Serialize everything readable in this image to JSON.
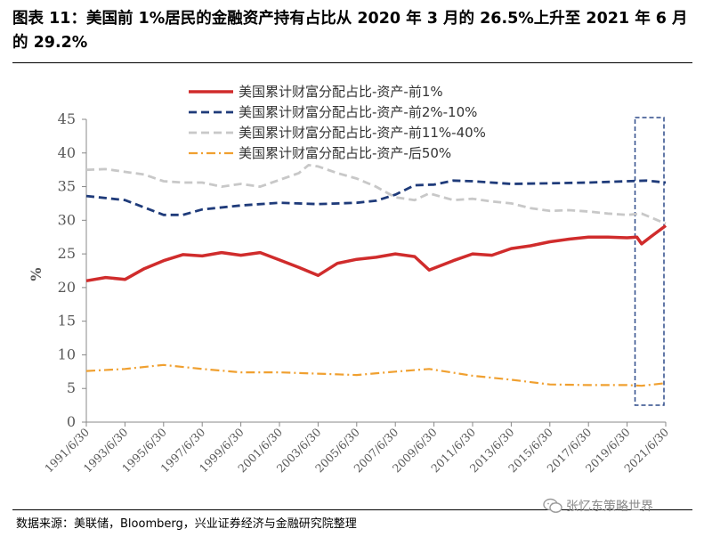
{
  "header": {
    "title": "图表 11：美国前 1%居民的金融资产持有占比从 2020 年 3 月的 26.5%上升至 2021 年 6 月的 29.2%"
  },
  "footer": {
    "source": "数据来源：美联储，Bloomberg，兴业证券经济与金融研究院整理",
    "watermark": "张忆东策略世界"
  },
  "chart_data": {
    "type": "line",
    "ylabel": "%",
    "xlabel": "",
    "ylim": [
      0,
      45
    ],
    "yticks": [
      0,
      5,
      10,
      15,
      20,
      25,
      30,
      35,
      40,
      45
    ],
    "x_tick_labels": [
      "1991/6/30",
      "1993/6/30",
      "1995/6/30",
      "1997/6/30",
      "1999/6/30",
      "2001/6/30",
      "2003/6/30",
      "2005/6/30",
      "2007/6/30",
      "2009/6/30",
      "2011/6/30",
      "2013/6/30",
      "2015/6/30",
      "2017/6/30",
      "2019/6/30",
      "2021/6/30"
    ],
    "xlim": [
      "1991/6/30",
      "2021/6/30"
    ],
    "grid": false,
    "legend_position": "top-center",
    "highlight": {
      "from": "2019/12/31",
      "to": "2021/6/30",
      "style": "dashed box"
    },
    "series": [
      {
        "name": "美国累计财富分配占比-资产-前1%",
        "color": "#d02c2c",
        "style": "solid",
        "points": [
          [
            "1991/6/30",
            21.0
          ],
          [
            "1992/6/30",
            21.5
          ],
          [
            "1993/6/30",
            21.2
          ],
          [
            "1994/6/30",
            22.8
          ],
          [
            "1995/6/30",
            24.0
          ],
          [
            "1996/6/30",
            24.9
          ],
          [
            "1997/6/30",
            24.7
          ],
          [
            "1998/6/30",
            25.2
          ],
          [
            "1999/6/30",
            24.8
          ],
          [
            "2000/6/30",
            25.2
          ],
          [
            "2001/6/30",
            24.1
          ],
          [
            "2002/6/30",
            23.0
          ],
          [
            "2003/6/30",
            21.8
          ],
          [
            "2004/6/30",
            23.6
          ],
          [
            "2005/6/30",
            24.2
          ],
          [
            "2006/6/30",
            24.5
          ],
          [
            "2007/6/30",
            25.0
          ],
          [
            "2008/6/30",
            24.6
          ],
          [
            "2009/3/31",
            22.6
          ],
          [
            "2010/6/30",
            24.0
          ],
          [
            "2011/6/30",
            25.0
          ],
          [
            "2012/6/30",
            24.8
          ],
          [
            "2013/6/30",
            25.8
          ],
          [
            "2014/6/30",
            26.2
          ],
          [
            "2015/6/30",
            26.8
          ],
          [
            "2016/6/30",
            27.2
          ],
          [
            "2017/6/30",
            27.5
          ],
          [
            "2018/6/30",
            27.5
          ],
          [
            "2019/6/30",
            27.4
          ],
          [
            "2019/12/31",
            27.5
          ],
          [
            "2020/3/31",
            26.5
          ],
          [
            "2020/9/30",
            27.6
          ],
          [
            "2021/6/30",
            29.2
          ]
        ]
      },
      {
        "name": "美国累计财富分配占比-资产-前2%-10%",
        "color": "#1f3b7a",
        "style": "dashed",
        "points": [
          [
            "1991/6/30",
            33.6
          ],
          [
            "1993/6/30",
            33.0
          ],
          [
            "1995/6/30",
            30.8
          ],
          [
            "1996/6/30",
            30.8
          ],
          [
            "1997/6/30",
            31.6
          ],
          [
            "1999/6/30",
            32.2
          ],
          [
            "2001/6/30",
            32.6
          ],
          [
            "2003/6/30",
            32.4
          ],
          [
            "2005/6/30",
            32.6
          ],
          [
            "2006/6/30",
            32.9
          ],
          [
            "2007/6/30",
            33.8
          ],
          [
            "2008/6/30",
            35.2
          ],
          [
            "2009/6/30",
            35.3
          ],
          [
            "2010/6/30",
            35.9
          ],
          [
            "2011/6/30",
            35.8
          ],
          [
            "2013/6/30",
            35.4
          ],
          [
            "2015/6/30",
            35.5
          ],
          [
            "2017/6/30",
            35.6
          ],
          [
            "2019/6/30",
            35.8
          ],
          [
            "2020/6/30",
            35.9
          ],
          [
            "2021/6/30",
            35.6
          ]
        ]
      },
      {
        "name": "美国累计财富分配占比-资产-前11%-40%",
        "color": "#c8c8c8",
        "style": "dashed",
        "points": [
          [
            "1991/6/30",
            37.5
          ],
          [
            "1992/6/30",
            37.6
          ],
          [
            "1994/6/30",
            36.8
          ],
          [
            "1995/6/30",
            35.8
          ],
          [
            "1996/6/30",
            35.6
          ],
          [
            "1997/6/30",
            35.6
          ],
          [
            "1998/6/30",
            35.0
          ],
          [
            "1999/6/30",
            35.4
          ],
          [
            "2000/6/30",
            35.0
          ],
          [
            "2001/6/30",
            36.0
          ],
          [
            "2002/6/30",
            37.0
          ],
          [
            "2002/12/31",
            38.2
          ],
          [
            "2003/6/30",
            38.0
          ],
          [
            "2004/6/30",
            37.0
          ],
          [
            "2005/6/30",
            36.2
          ],
          [
            "2006/6/30",
            35.0
          ],
          [
            "2007/6/30",
            33.4
          ],
          [
            "2008/6/30",
            33.0
          ],
          [
            "2009/3/31",
            34.0
          ],
          [
            "2010/6/30",
            33.0
          ],
          [
            "2011/6/30",
            33.2
          ],
          [
            "2012/6/30",
            32.8
          ],
          [
            "2013/6/30",
            32.5
          ],
          [
            "2014/6/30",
            31.8
          ],
          [
            "2015/6/30",
            31.4
          ],
          [
            "2016/6/30",
            31.5
          ],
          [
            "2017/6/30",
            31.3
          ],
          [
            "2018/6/30",
            31.0
          ],
          [
            "2019/6/30",
            30.8
          ],
          [
            "2020/3/31",
            31.0
          ],
          [
            "2021/6/30",
            29.5
          ]
        ]
      },
      {
        "name": "美国累计财富分配占比-资产-后50%",
        "color": "#f0a030",
        "style": "dashdot",
        "points": [
          [
            "1991/6/30",
            7.6
          ],
          [
            "1993/6/30",
            7.9
          ],
          [
            "1995/6/30",
            8.5
          ],
          [
            "1997/6/30",
            7.9
          ],
          [
            "1999/6/30",
            7.4
          ],
          [
            "2001/6/30",
            7.4
          ],
          [
            "2003/6/30",
            7.2
          ],
          [
            "2005/6/30",
            7.0
          ],
          [
            "2007/6/30",
            7.5
          ],
          [
            "2009/3/31",
            7.9
          ],
          [
            "2011/6/30",
            6.9
          ],
          [
            "2013/6/30",
            6.3
          ],
          [
            "2015/6/30",
            5.6
          ],
          [
            "2017/6/30",
            5.5
          ],
          [
            "2019/6/30",
            5.5
          ],
          [
            "2020/3/31",
            5.4
          ],
          [
            "2021/6/30",
            5.8
          ]
        ]
      }
    ]
  }
}
